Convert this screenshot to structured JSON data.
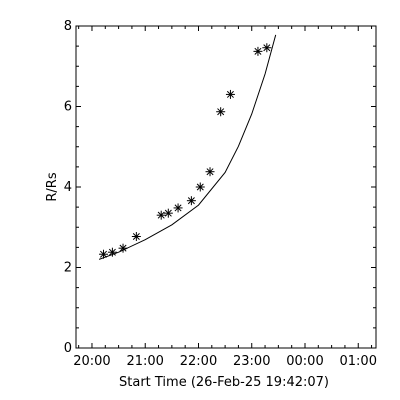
{
  "chart_data": {
    "type": "scatter",
    "title": "",
    "xlabel": "Start Time (26-Feb-25 19:42:07)",
    "ylabel": "R/Rs",
    "xlim": [
      "19:42",
      "01:20"
    ],
    "ylim": [
      0,
      8
    ],
    "x_ticks": [
      "20:00",
      "21:00",
      "22:00",
      "23:00",
      "00:00",
      "01:00"
    ],
    "y_ticks": [
      0,
      2,
      4,
      6,
      8
    ],
    "grid": false,
    "legend": "none",
    "marker": "asterisk",
    "points": [
      {
        "x": "20:13",
        "y": 2.33
      },
      {
        "x": "20:23",
        "y": 2.38
      },
      {
        "x": "20:35",
        "y": 2.48
      },
      {
        "x": "20:50",
        "y": 2.77
      },
      {
        "x": "21:18",
        "y": 3.3
      },
      {
        "x": "21:26",
        "y": 3.35
      },
      {
        "x": "21:37",
        "y": 3.48
      },
      {
        "x": "21:52",
        "y": 3.66
      },
      {
        "x": "22:02",
        "y": 4.0
      },
      {
        "x": "22:13",
        "y": 4.38
      },
      {
        "x": "22:25",
        "y": 5.87
      },
      {
        "x": "22:36",
        "y": 6.3
      },
      {
        "x": "23:07",
        "y": 7.37
      },
      {
        "x": "23:17",
        "y": 7.46
      }
    ],
    "fit_curve": [
      {
        "x": "20:08",
        "y": 2.2
      },
      {
        "x": "20:30",
        "y": 2.38
      },
      {
        "x": "21:00",
        "y": 2.69
      },
      {
        "x": "21:30",
        "y": 3.06
      },
      {
        "x": "22:00",
        "y": 3.55
      },
      {
        "x": "22:30",
        "y": 4.36
      },
      {
        "x": "22:45",
        "y": 5.01
      },
      {
        "x": "23:00",
        "y": 5.81
      },
      {
        "x": "23:15",
        "y": 6.81
      },
      {
        "x": "23:27",
        "y": 7.78
      }
    ],
    "colors": {
      "foreground": "#000000",
      "background": "#ffffff"
    }
  }
}
